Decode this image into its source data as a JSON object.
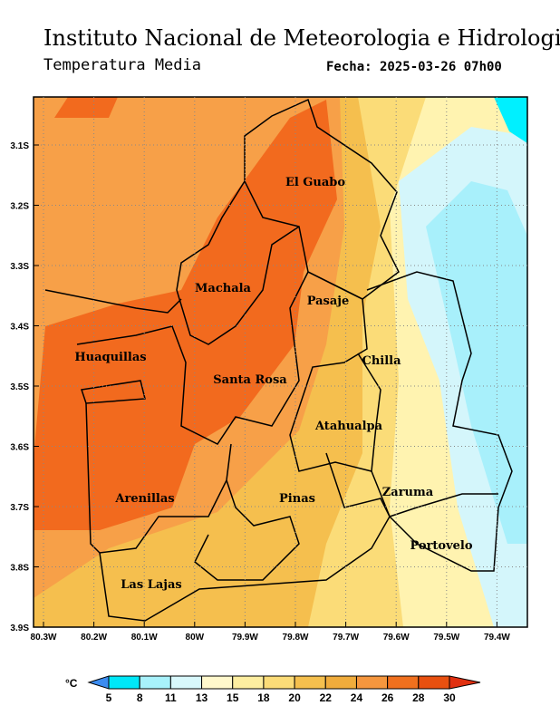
{
  "header": {
    "title": "Instituto Nacional de Meteorologia e Hidrologia",
    "subtitle": "Temperatura Media",
    "date": "Fecha: 2025-03-26 07h00"
  },
  "map": {
    "yticks": [
      "3.1S",
      "3.2S",
      "3.3S",
      "3.4S",
      "3.5S",
      "3.6S",
      "3.7S",
      "3.8S",
      "3.9S"
    ],
    "xticks": [
      "80.3W",
      "80.2W",
      "80.1W",
      "80W",
      "79.9W",
      "79.8W",
      "79.7W",
      "79.6W",
      "79.5W",
      "79.4W"
    ],
    "places": [
      "El Guabo",
      "Machala",
      "Pasaje",
      "Huaquillas",
      "Chilla",
      "Santa Rosa",
      "Atahualpa",
      "Zaruma",
      "Arenillas",
      "Pinas",
      "Portovelo",
      "Las Lajas"
    ]
  },
  "colorbar": {
    "unit": "°C",
    "labels": [
      5,
      8,
      11,
      13,
      15,
      18,
      20,
      22,
      24,
      26,
      28,
      30
    ],
    "colors": [
      "#3c8cf0",
      "#00e8f8",
      "#a8f2fb",
      "#d8f8fb",
      "#fff8cc",
      "#fdeea0",
      "#fbdc78",
      "#f5c04e",
      "#f0ac3c",
      "#f5963e",
      "#f0701e",
      "#e85010",
      "#e03010"
    ]
  }
}
